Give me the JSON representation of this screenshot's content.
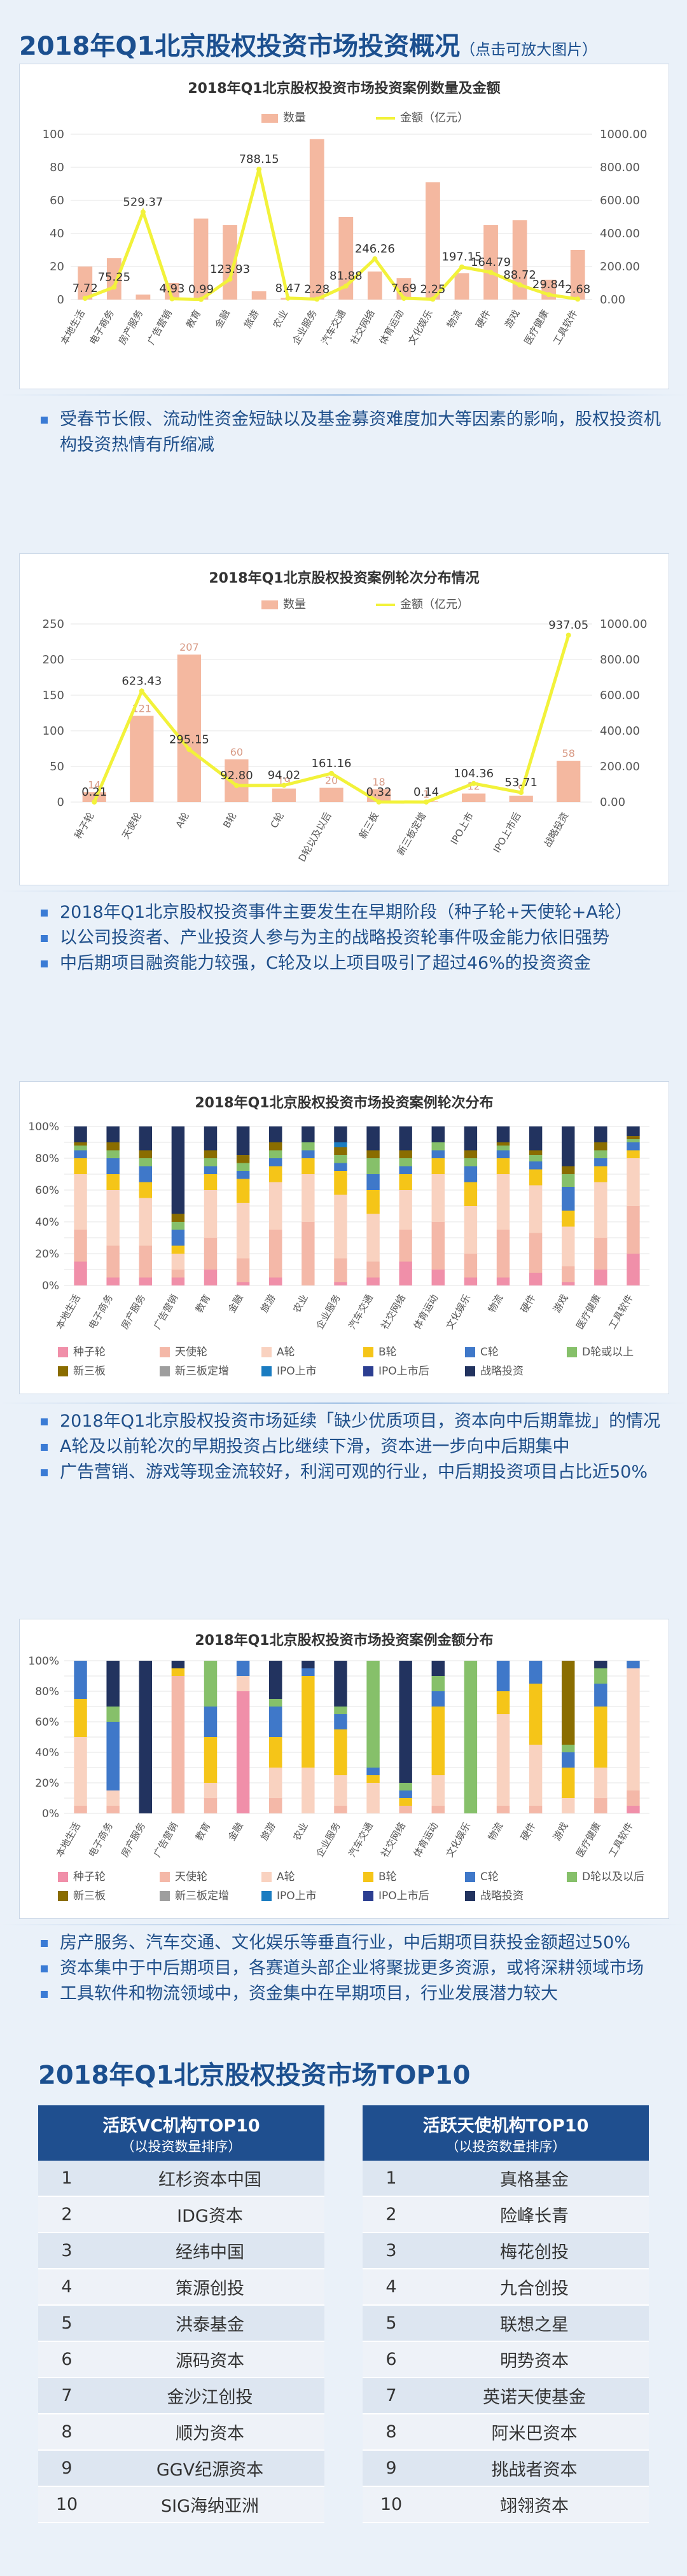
{
  "header": {
    "title": "2018年Q1北京股权投资市场投资概况",
    "note": "（点击可放大图片）"
  },
  "sections": [
    {
      "bullets": [
        "受春节长假、流动性资金短缺以及基金募资难度加大等因素的影响，股权投资机构投资热情有所缩减"
      ]
    },
    {
      "bullets": [
        "2018年Q1北京股权投资事件主要发生在早期阶段（种子轮+天使轮+A轮）",
        "以公司投资者、产业投资人参与为主的战略投资轮事件吸金能力依旧强势",
        "中后期项目融资能力较强，C轮及以上项目吸引了超过46%的投资资金"
      ]
    },
    {
      "bullets": [
        "2018年Q1北京股权投资市场延续「缺少优质项目，资本向中后期靠拢」的情况",
        "A轮及以前轮次的早期投资占比继续下滑，资本进一步向中后期集中",
        "广告营销、游戏等现金流较好，利润可观的行业，中后期投资项目占比近50%"
      ]
    },
    {
      "bullets": [
        "房产服务、汽车交通、文化娱乐等垂直行业，中后期项目获投金额超过50%",
        "资本集中于中后期项目，各赛道头部企业将聚拢更多资源，或将深耕领域市场",
        "工具软件和物流领域中，资金集中在早期项目，行业发展潜力较大"
      ]
    }
  ],
  "chart_data": [
    {
      "type": "bar",
      "title": "2018年Q1北京股权投资市场投资案例数量及金额",
      "legend": [
        "数量",
        "金额（亿元）"
      ],
      "categories": [
        "本地生活",
        "电子商务",
        "房产服务",
        "广告营销",
        "教育",
        "金融",
        "旅游",
        "农业",
        "企业服务",
        "汽车交通",
        "社交网络",
        "体育运动",
        "文化娱乐",
        "物流",
        "硬件",
        "游戏",
        "医疗健康",
        "工具软件"
      ],
      "series": [
        {
          "name": "数量",
          "values": [
            20,
            25,
            3,
            10,
            49,
            45,
            5,
            1,
            97,
            50,
            17,
            13,
            71,
            16,
            45,
            48,
            12,
            30
          ]
        },
        {
          "name": "金额（亿元）",
          "values": [
            7.72,
            75.25,
            529.37,
            4.93,
            0.99,
            123.93,
            788.15,
            8.47,
            2.28,
            81.88,
            246.26,
            7.69,
            2.25,
            197.15,
            164.79,
            88.72,
            29.84,
            2.68
          ]
        }
      ],
      "value_labels": [
        "7.72",
        "75.25",
        "529.37",
        "4.93",
        "0.99",
        "123.93",
        "788.15",
        "8.47",
        "2.28",
        "81.88",
        "246.26",
        "7.69",
        "2.25",
        "197.15",
        "164.79",
        "88.72",
        "29.84",
        "2.68"
      ],
      "left_axis": [
        0,
        100
      ],
      "right_axis": [
        0,
        1000
      ]
    },
    {
      "type": "bar",
      "title": "2018年Q1北京股权投资案例轮次分布情况",
      "legend": [
        "数量",
        "金额（亿元）"
      ],
      "categories": [
        "种子轮",
        "天使轮",
        "A轮",
        "B轮",
        "C轮",
        "D轮以及以后",
        "新三板",
        "新三板定增",
        "IPO上市",
        "IPO上市后",
        "战略投资"
      ],
      "series": [
        {
          "name": "数量",
          "values": [
            14,
            121,
            207,
            60,
            19,
            20,
            18,
            1,
            12,
            9,
            58
          ]
        },
        {
          "name": "金额（亿元）",
          "values": [
            0.21,
            623.43,
            295.15,
            92.8,
            94.02,
            161.16,
            0.32,
            0.14,
            104.36,
            53.71,
            937.05
          ]
        }
      ],
      "count_labels": [
        "14",
        "121",
        "207",
        "60",
        "19",
        "20",
        "18",
        "1",
        "12",
        "9",
        "58"
      ],
      "value_labels": [
        "0.21",
        "623.43",
        "295.15",
        "92.80",
        "94.02",
        "161.16",
        "0.32",
        "0.14",
        "104.36",
        "53.71",
        "937.05"
      ],
      "left_axis": [
        0,
        250
      ],
      "right_axis": [
        0,
        1000
      ]
    },
    {
      "type": "bar",
      "title": "2018年Q1北京股权投资市场投资案例轮次分布",
      "stacked_percent": true,
      "y_ticks": [
        "0%",
        "10%",
        "20%",
        "30%",
        "40%",
        "50%",
        "60%",
        "70%",
        "80%",
        "90%",
        "100%"
      ],
      "categories": [
        "本地生活",
        "电子商务",
        "房产服务",
        "广告营销",
        "教育",
        "金融",
        "旅游",
        "农业",
        "企业服务",
        "汽车交通",
        "社交网络",
        "体育运动",
        "文化娱乐",
        "物流",
        "硬件",
        "游戏",
        "医疗健康",
        "工具软件"
      ],
      "series": [
        {
          "name": "种子轮",
          "color": "#f08fa9",
          "values": [
            0.15,
            0.05,
            0.05,
            0.05,
            0.1,
            0.02,
            0.05,
            0,
            0.02,
            0.05,
            0.15,
            0.1,
            0.05,
            0.05,
            0.08,
            0.02,
            0.1,
            0.2
          ]
        },
        {
          "name": "天使轮",
          "color": "#f4b8a8",
          "values": [
            0.2,
            0.2,
            0.2,
            0.05,
            0.2,
            0.15,
            0.3,
            0.4,
            0.15,
            0.1,
            0.2,
            0.3,
            0.15,
            0.3,
            0.25,
            0.1,
            0.2,
            0.3
          ]
        },
        {
          "name": "A轮",
          "color": "#f9d2c0",
          "values": [
            0.35,
            0.35,
            0.3,
            0.1,
            0.3,
            0.35,
            0.3,
            0.3,
            0.4,
            0.3,
            0.25,
            0.3,
            0.3,
            0.35,
            0.3,
            0.25,
            0.35,
            0.3
          ]
        },
        {
          "name": "B轮",
          "color": "#f5c518",
          "values": [
            0.1,
            0.1,
            0.1,
            0.05,
            0.1,
            0.15,
            0.1,
            0.1,
            0.15,
            0.15,
            0.1,
            0.1,
            0.15,
            0.1,
            0.1,
            0.1,
            0.1,
            0.05
          ]
        },
        {
          "name": "C轮",
          "color": "#3f78c9",
          "values": [
            0.05,
            0.1,
            0.1,
            0.1,
            0.05,
            0.05,
            0.05,
            0.05,
            0.05,
            0.1,
            0.05,
            0.05,
            0.1,
            0.05,
            0.05,
            0.15,
            0.05,
            0.05
          ]
        },
        {
          "name": "D轮或以上",
          "color": "#86c06a",
          "values": [
            0.03,
            0.05,
            0.05,
            0.05,
            0.05,
            0.05,
            0.05,
            0.05,
            0.05,
            0.1,
            0.05,
            0.05,
            0.05,
            0.03,
            0.04,
            0.08,
            0.05,
            0.02
          ]
        },
        {
          "name": "新三板",
          "color": "#8a6d00",
          "values": [
            0.02,
            0.05,
            0.05,
            0.05,
            0.05,
            0.05,
            0.05,
            0,
            0.05,
            0.05,
            0.05,
            0,
            0.05,
            0.02,
            0.03,
            0.05,
            0.05,
            0.02
          ]
        },
        {
          "name": "新三板定增",
          "color": "#9e9e9e",
          "values": [
            0,
            0,
            0,
            0,
            0,
            0,
            0,
            0,
            0,
            0,
            0,
            0,
            0,
            0,
            0,
            0,
            0,
            0
          ]
        },
        {
          "name": "IPO上市",
          "color": "#1a7cc1",
          "values": [
            0,
            0,
            0,
            0,
            0,
            0,
            0,
            0,
            0.03,
            0,
            0,
            0,
            0,
            0,
            0,
            0,
            0,
            0
          ]
        },
        {
          "name": "IPO上市后",
          "color": "#2c3e91",
          "values": [
            0,
            0,
            0,
            0,
            0,
            0,
            0,
            0,
            0,
            0,
            0,
            0,
            0,
            0,
            0,
            0,
            0,
            0
          ]
        },
        {
          "name": "战略投资",
          "color": "#22335f",
          "values": [
            0.1,
            0.1,
            0.15,
            0.55,
            0.15,
            0.18,
            0.1,
            0.1,
            0.1,
            0.15,
            0.15,
            0.1,
            0.15,
            0.1,
            0.15,
            0.25,
            0.1,
            0.06
          ]
        }
      ]
    },
    {
      "type": "bar",
      "title": "2018年Q1北京股权投资市场投资案例金额分布",
      "stacked_percent": true,
      "y_ticks": [
        "0%",
        "10%",
        "20%",
        "30%",
        "40%",
        "50%",
        "60%",
        "70%",
        "80%",
        "90%",
        "100%"
      ],
      "categories": [
        "本地生活",
        "电子商务",
        "房产服务",
        "广告营销",
        "教育",
        "金融",
        "旅游",
        "农业",
        "企业服务",
        "汽车交通",
        "社交网络",
        "体育运动",
        "文化娱乐",
        "物流",
        "硬件",
        "游戏",
        "医疗健康",
        "工具软件"
      ],
      "series": [
        {
          "name": "种子轮",
          "color": "#f08fa9",
          "values": [
            0,
            0,
            0,
            0,
            0,
            0.8,
            0,
            0,
            0,
            0,
            0,
            0,
            0,
            0,
            0,
            0,
            0,
            0.05
          ]
        },
        {
          "name": "天使轮",
          "color": "#f4b8a8",
          "values": [
            0.05,
            0.05,
            0,
            0.9,
            0.1,
            0,
            0.1,
            0,
            0.05,
            0,
            0.05,
            0.05,
            0,
            0.05,
            0.05,
            0,
            0.1,
            0.1
          ]
        },
        {
          "name": "A轮",
          "color": "#f9d2c0",
          "values": [
            0.45,
            0.1,
            0,
            0,
            0.1,
            0.1,
            0.2,
            0.3,
            0.2,
            0.2,
            0,
            0.2,
            0,
            0.6,
            0.4,
            0.1,
            0.2,
            0.8
          ]
        },
        {
          "name": "B轮",
          "color": "#f5c518",
          "values": [
            0.25,
            0,
            0,
            0.05,
            0.3,
            0,
            0.2,
            0.6,
            0.3,
            0.05,
            0.05,
            0.45,
            0,
            0.15,
            0.4,
            0.2,
            0.4,
            0
          ]
        },
        {
          "name": "C轮",
          "color": "#3f78c9",
          "values": [
            0.25,
            0.45,
            0,
            0,
            0.2,
            0.1,
            0.2,
            0.05,
            0.1,
            0.05,
            0.05,
            0.1,
            0,
            0.2,
            0.15,
            0.1,
            0.15,
            0.05
          ]
        },
        {
          "name": "D轮以及以后",
          "color": "#86c06a",
          "values": [
            0,
            0.1,
            0,
            0,
            0.3,
            0,
            0.05,
            0,
            0.05,
            0.7,
            0.05,
            0.1,
            1.0,
            0,
            0,
            0.05,
            0.1,
            0
          ]
        },
        {
          "name": "新三板",
          "color": "#8a6d00",
          "values": [
            0,
            0,
            0,
            0,
            0,
            0,
            0,
            0,
            0,
            0,
            0,
            0,
            0,
            0,
            0,
            0.55,
            0,
            0
          ]
        },
        {
          "name": "新三板定增",
          "color": "#9e9e9e",
          "values": [
            0,
            0,
            0,
            0,
            0,
            0,
            0,
            0,
            0,
            0,
            0,
            0,
            0,
            0,
            0,
            0,
            0,
            0
          ]
        },
        {
          "name": "IPO上市",
          "color": "#1a7cc1",
          "values": [
            0,
            0,
            0,
            0,
            0,
            0,
            0,
            0,
            0,
            0,
            0,
            0,
            0,
            0,
            0,
            0,
            0,
            0
          ]
        },
        {
          "name": "IPO上市后",
          "color": "#2c3e91",
          "values": [
            0,
            0,
            0,
            0,
            0,
            0,
            0,
            0,
            0,
            0,
            0,
            0,
            0,
            0,
            0,
            0,
            0,
            0
          ]
        },
        {
          "name": "战略投资",
          "color": "#22335f",
          "values": [
            0,
            0.3,
            1.0,
            0.05,
            0,
            0,
            0.25,
            0.05,
            0.3,
            0,
            0.8,
            0.1,
            0,
            0,
            0,
            0,
            0.05,
            0
          ]
        }
      ]
    }
  ],
  "top10": {
    "title": "2018年Q1北京股权投资市场TOP10",
    "vc": {
      "title": "活跃VC机构TOP10",
      "subtitle": "（以投资数量排序）",
      "ranks": [
        "1",
        "2",
        "3",
        "4",
        "5",
        "6",
        "7",
        "8",
        "9",
        "10"
      ],
      "names": [
        "红杉资本中国",
        "IDG资本",
        "经纬中国",
        "策源创投",
        "洪泰基金",
        "源码资本",
        "金沙江创投",
        "顺为资本",
        "GGV纪源资本",
        "SIG海纳亚洲"
      ]
    },
    "angel": {
      "title": "活跃天使机构TOP10",
      "subtitle": "（以投资数量排序）",
      "ranks": [
        "1",
        "2",
        "3",
        "4",
        "5",
        "6",
        "7",
        "8",
        "9",
        "10"
      ],
      "names": [
        "真格基金",
        "险峰长青",
        "梅花创投",
        "九合创投",
        "联想之星",
        "明势资本",
        "英诺天使基金",
        "阿米巴资本",
        "挑战者资本",
        "翊翎资本"
      ]
    }
  },
  "colors": {
    "accent": "#1b4f8f",
    "bar": "#f4b8a0",
    "line": "#f2f23a"
  }
}
